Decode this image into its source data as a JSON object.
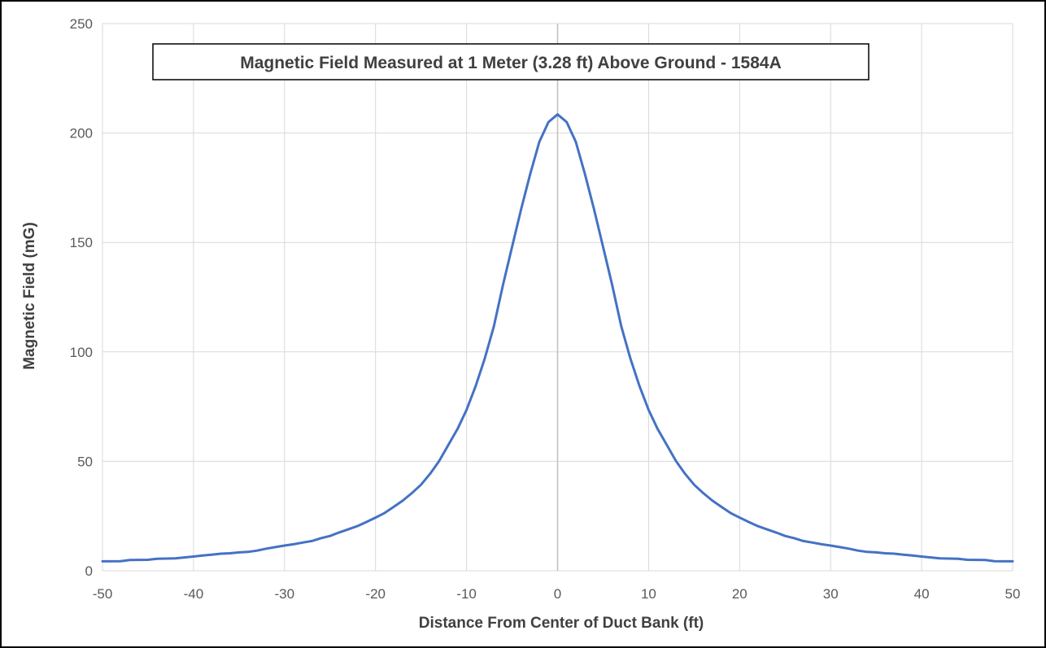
{
  "chart_data": {
    "type": "line",
    "title": "Magnetic Field Measured at 1 Meter (3.28 ft) Above Ground - 1584A",
    "xlabel": "Distance From Center of Duct Bank (ft)",
    "ylabel": "Magnetic Field (mG)",
    "xlim": [
      -50,
      50
    ],
    "ylim": [
      0,
      250
    ],
    "x_ticks": [
      -50,
      -40,
      -30,
      -20,
      -10,
      0,
      10,
      20,
      30,
      40,
      50
    ],
    "y_ticks": [
      0,
      50,
      100,
      150,
      200,
      250
    ],
    "grid": true,
    "legend": "none",
    "colors": {
      "line": "#4472c4",
      "grid": "#d9d9d9",
      "zero_line": "#bfbfbf"
    },
    "series": [
      {
        "x": [
          -50,
          -48,
          -47,
          -45,
          -44,
          -42,
          -41,
          -40,
          -39,
          -38,
          -37,
          -36,
          -35,
          -34,
          -33,
          -32,
          -31,
          -30,
          -29,
          -28,
          -27,
          -26,
          -25,
          -24,
          -23,
          -22,
          -21,
          -20,
          -19,
          -18,
          -17,
          -16,
          -15,
          -14,
          -13,
          -12,
          -11,
          -10,
          -9,
          -8,
          -7,
          -6,
          -5,
          -4,
          -3,
          -2,
          -1,
          0,
          1,
          2,
          3,
          4,
          5,
          6,
          7,
          8,
          9,
          10,
          11,
          12,
          13,
          14,
          15,
          16,
          17,
          18,
          19,
          20,
          21,
          22,
          23,
          24,
          25,
          26,
          27,
          28,
          29,
          30,
          31,
          32,
          33,
          34,
          35,
          36,
          37,
          38,
          39,
          40,
          41,
          42,
          44,
          45,
          47,
          48,
          50
        ],
        "values": [
          4.3,
          4.4,
          4.9,
          5.0,
          5.5,
          5.7,
          6.1,
          6.5,
          7.0,
          7.3,
          7.8,
          8.0,
          8.4,
          8.6,
          9.2,
          10.1,
          10.8,
          11.5,
          12.1,
          12.9,
          13.6,
          14.9,
          15.9,
          17.5,
          18.9,
          20.4,
          22.3,
          24.3,
          26.4,
          29.2,
          32.1,
          35.5,
          39.3,
          44.3,
          50.2,
          57.5,
          64.7,
          73.5,
          84.4,
          97.0,
          111.7,
          130.6,
          147.9,
          165.2,
          181.3,
          196.0,
          205.0,
          208.5,
          205.0,
          196.0,
          181.3,
          165.2,
          147.9,
          130.6,
          111.7,
          97.0,
          84.4,
          73.5,
          64.7,
          57.5,
          50.2,
          44.3,
          39.3,
          35.5,
          32.1,
          29.2,
          26.4,
          24.3,
          22.3,
          20.4,
          18.9,
          17.5,
          15.9,
          14.9,
          13.6,
          12.9,
          12.1,
          11.5,
          10.8,
          10.1,
          9.2,
          8.6,
          8.4,
          8.0,
          7.8,
          7.3,
          7.0,
          6.5,
          6.1,
          5.7,
          5.5,
          5.0,
          4.9,
          4.4,
          4.3
        ]
      }
    ]
  }
}
